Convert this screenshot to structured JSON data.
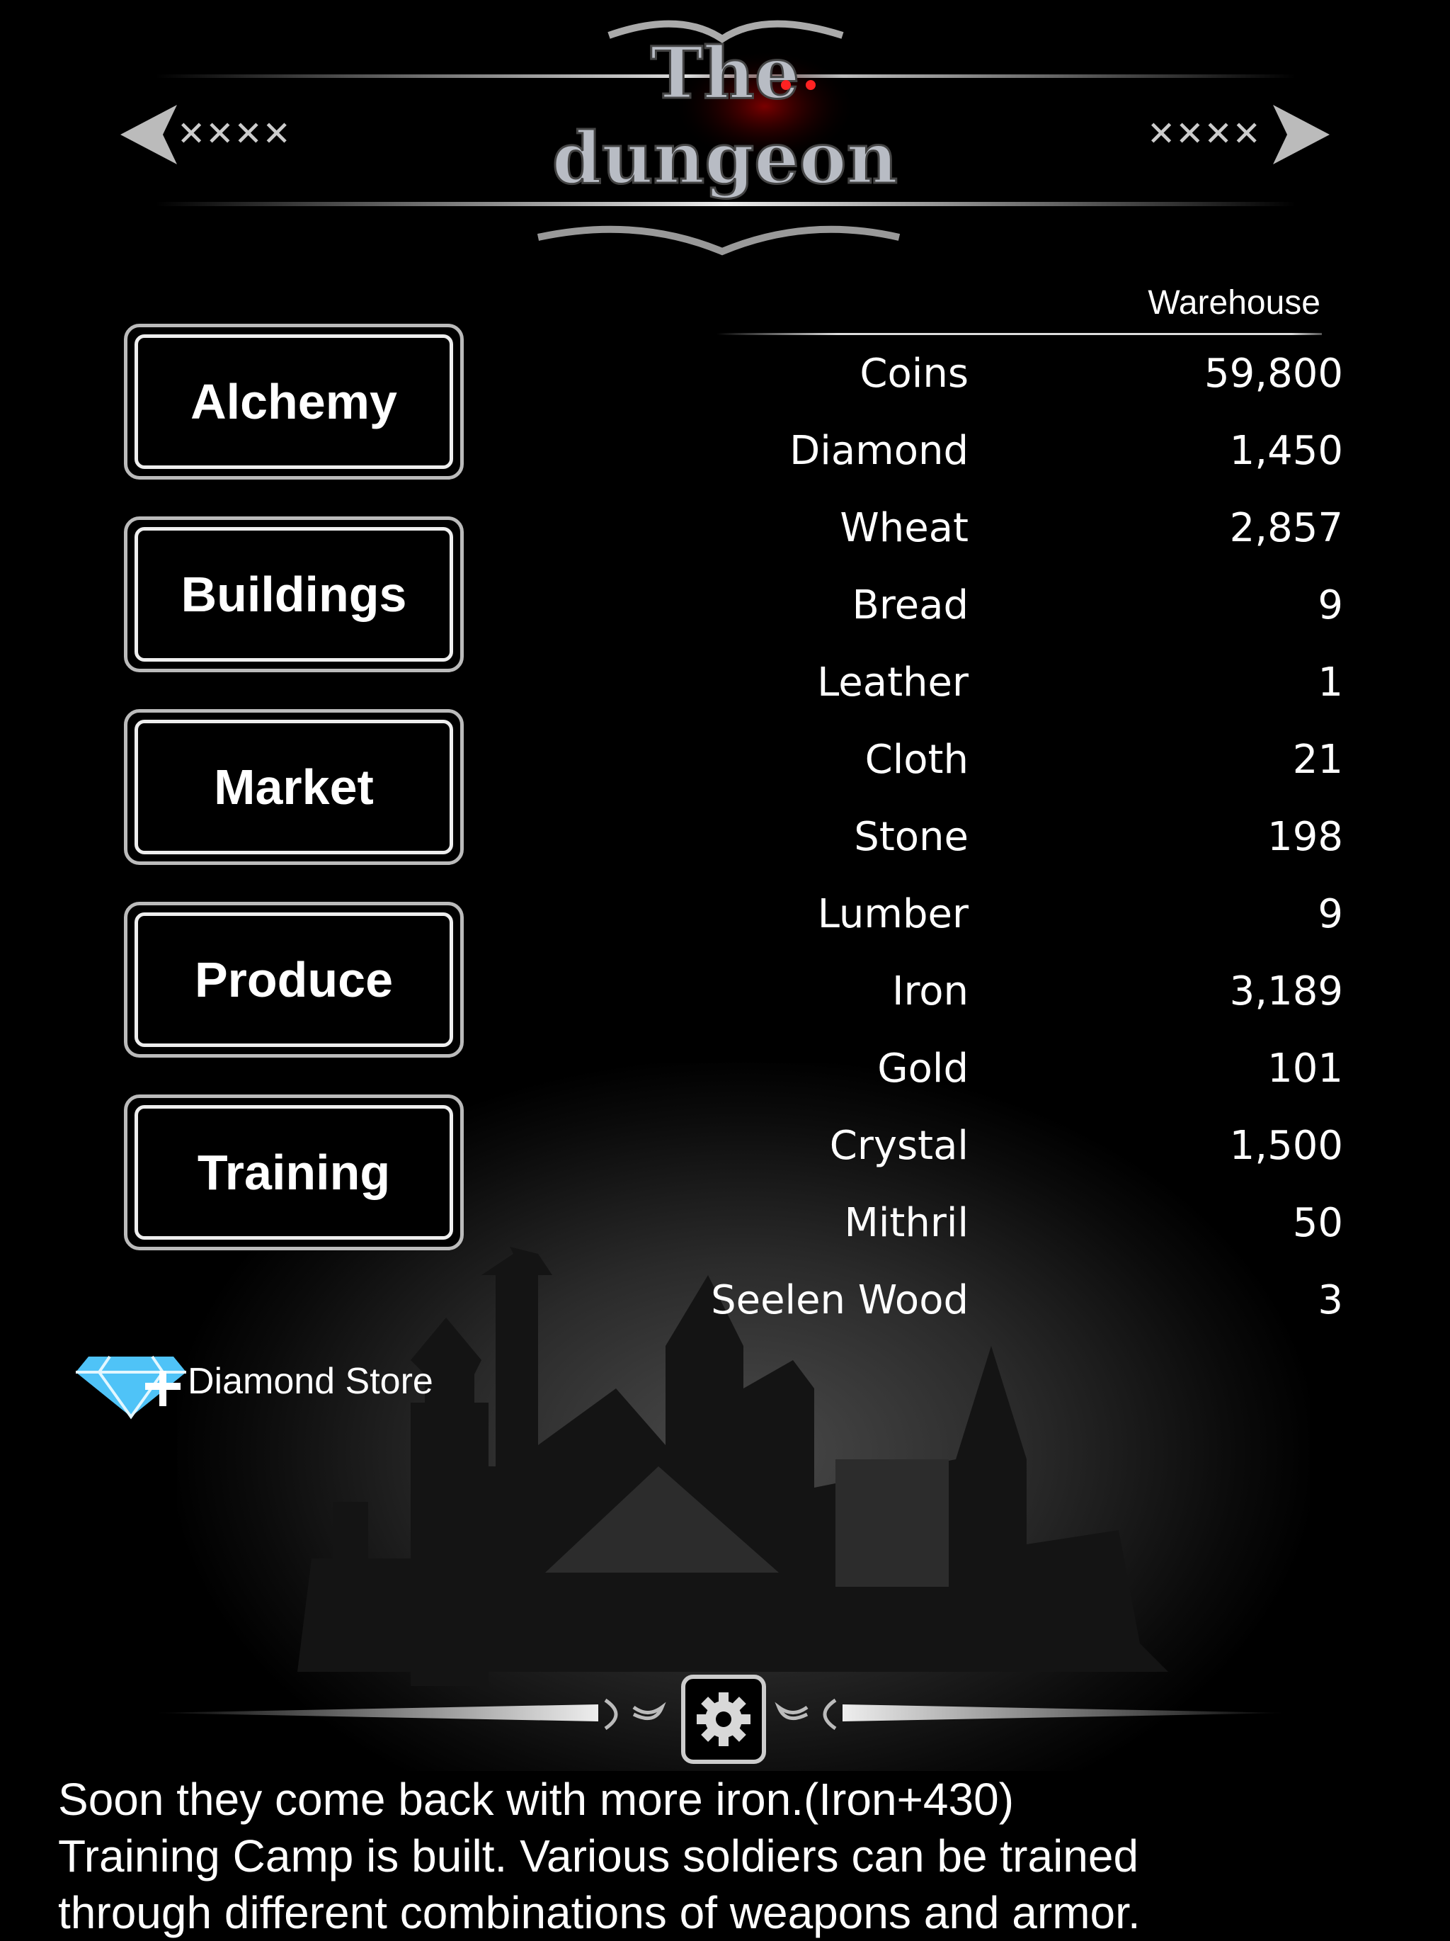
{
  "logo": {
    "text": "The dungeon"
  },
  "menu": {
    "buttons": [
      {
        "label": "Alchemy"
      },
      {
        "label": "Buildings"
      },
      {
        "label": "Market"
      },
      {
        "label": "Produce"
      },
      {
        "label": "Training"
      }
    ]
  },
  "warehouse": {
    "title": "Warehouse",
    "items": [
      {
        "name": "Coins",
        "value": "59,800"
      },
      {
        "name": "Diamond",
        "value": "1,450"
      },
      {
        "name": "Wheat",
        "value": "2,857"
      },
      {
        "name": "Bread",
        "value": "9"
      },
      {
        "name": "Leather",
        "value": "1"
      },
      {
        "name": "Cloth",
        "value": "21"
      },
      {
        "name": "Stone",
        "value": "198"
      },
      {
        "name": "Lumber",
        "value": "9"
      },
      {
        "name": "Iron",
        "value": "3,189"
      },
      {
        "name": "Gold",
        "value": "101"
      },
      {
        "name": "Crystal",
        "value": "1,500"
      },
      {
        "name": "Mithril",
        "value": "50"
      },
      {
        "name": "Seelen Wood",
        "value": "3"
      }
    ]
  },
  "diamond_store": {
    "label": "Diamond Store",
    "icon": "diamond-plus-icon",
    "color": "#4fc3f7"
  },
  "settings": {
    "icon": "gear-icon"
  },
  "log": {
    "lines": [
      "Soon they come back with more iron.(Iron+430)",
      "Training Camp is built. Various soldiers can be trained",
      "through different combinations of weapons and armor."
    ]
  }
}
